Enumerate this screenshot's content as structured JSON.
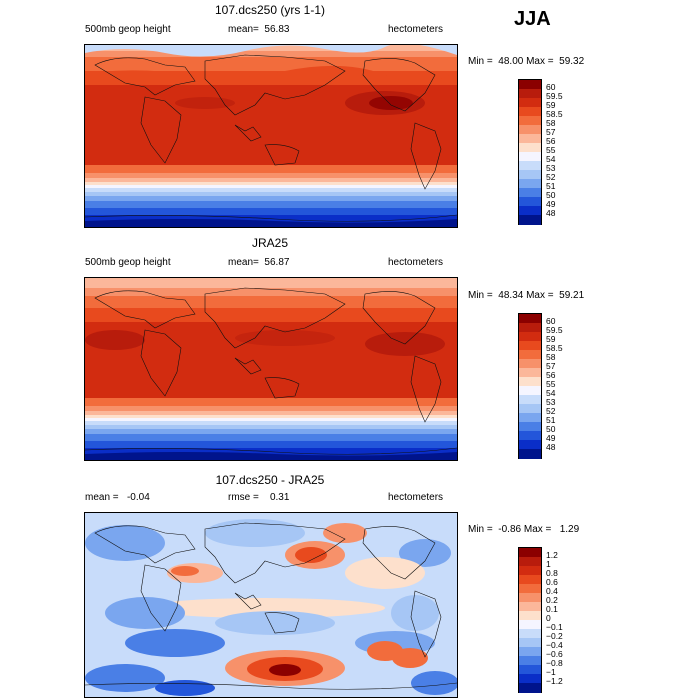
{
  "season": "JJA",
  "panels": [
    {
      "title": "107.dcs250 (yrs 1-1)",
      "left_label": "500mb geop height",
      "center_label": "mean=  56.83",
      "right_label": "hectometers",
      "minmax": "Min =  48.00 Max =  59.32",
      "kind": "height",
      "colorbar": {
        "labels": [
          "60",
          "59.5",
          "59",
          "58.5",
          "58",
          "57",
          "56",
          "55",
          "54",
          "53",
          "52",
          "51",
          "50",
          "49",
          "48"
        ],
        "colors": [
          "#8b0000",
          "#b81c0c",
          "#d22c10",
          "#e84a1e",
          "#f26c3c",
          "#f7916a",
          "#fbb79a",
          "#fde0cc",
          "#f5f5ff",
          "#c8dcfa",
          "#a6c6f5",
          "#7aa6ef",
          "#4a7fe6",
          "#2356da",
          "#0a2ec8",
          "#00148c"
        ]
      }
    },
    {
      "title": "JRA25",
      "left_label": "500mb geop height",
      "center_label": "mean=  56.87",
      "right_label": "hectometers",
      "minmax": "Min =  48.34 Max =  59.21",
      "kind": "height",
      "colorbar": {
        "labels": [
          "60",
          "59.5",
          "59",
          "58.5",
          "58",
          "57",
          "56",
          "55",
          "54",
          "53",
          "52",
          "51",
          "50",
          "49",
          "48"
        ],
        "colors": [
          "#8b0000",
          "#b81c0c",
          "#d22c10",
          "#e84a1e",
          "#f26c3c",
          "#f7916a",
          "#fbb79a",
          "#fde0cc",
          "#f5f5ff",
          "#c8dcfa",
          "#a6c6f5",
          "#7aa6ef",
          "#4a7fe6",
          "#2356da",
          "#0a2ec8",
          "#00148c"
        ]
      }
    },
    {
      "title": "107.dcs250 - JRA25",
      "left_label": "mean =   -0.04",
      "center_label": "rmse =    0.31",
      "right_label": "hectometers",
      "minmax": "Min =  -0.86 Max =   1.29",
      "kind": "diff",
      "colorbar": {
        "labels": [
          "1.2",
          "1",
          "0.8",
          "0.6",
          "0.4",
          "0.2",
          "0.1",
          "0",
          "−0.1",
          "−0.2",
          "−0.4",
          "−0.6",
          "−0.8",
          "−1",
          "−1.2"
        ],
        "colors": [
          "#8b0000",
          "#b81c0c",
          "#d22c10",
          "#e84a1e",
          "#f26c3c",
          "#f7916a",
          "#fbb79a",
          "#fde0cc",
          "#f5f5ff",
          "#c8dcfa",
          "#a6c6f5",
          "#7aa6ef",
          "#4a7fe6",
          "#2356da",
          "#0a2ec8",
          "#00148c"
        ]
      }
    }
  ]
}
